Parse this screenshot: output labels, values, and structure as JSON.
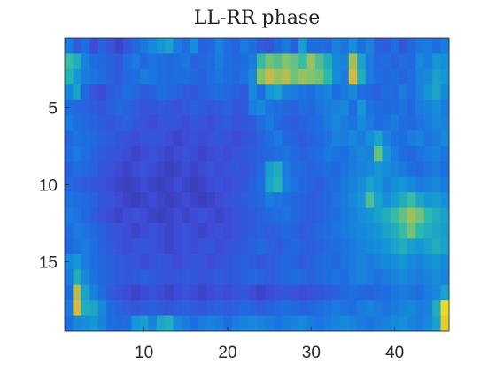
{
  "chart_data": {
    "type": "heatmap",
    "title": "LL-RR phase",
    "xlabel": "",
    "ylabel": "",
    "n_cols": 46,
    "n_rows": 19,
    "x_ticks": [
      10,
      20,
      30,
      40
    ],
    "y_ticks": [
      5,
      10,
      15
    ],
    "colormap": "parula",
    "grid": false,
    "values": [
      [
        0.35,
        0.22,
        0.3,
        0.15,
        0.25,
        0.18,
        0.12,
        0.2,
        0.28,
        0.33,
        0.4,
        0.45,
        0.5,
        0.35,
        0.3,
        0.42,
        0.25,
        0.28,
        0.38,
        0.3,
        0.25,
        0.35,
        0.3,
        0.22,
        0.2,
        0.28,
        0.35,
        0.25,
        0.48,
        0.3,
        0.3,
        0.28,
        0.38,
        0.32,
        0.42,
        0.3,
        0.38,
        0.25,
        0.22,
        0.3,
        0.2,
        0.28,
        0.33,
        0.35,
        0.3,
        0.35
      ],
      [
        0.62,
        0.55,
        0.38,
        0.3,
        0.28,
        0.25,
        0.22,
        0.3,
        0.35,
        0.28,
        0.32,
        0.3,
        0.28,
        0.3,
        0.33,
        0.25,
        0.28,
        0.3,
        0.35,
        0.3,
        0.28,
        0.3,
        0.35,
        0.62,
        0.7,
        0.66,
        0.72,
        0.68,
        0.62,
        0.75,
        0.65,
        0.55,
        0.4,
        0.38,
        0.76,
        0.5,
        0.35,
        0.28,
        0.3,
        0.25,
        0.3,
        0.28,
        0.4,
        0.35,
        0.45,
        0.42
      ],
      [
        0.58,
        0.45,
        0.35,
        0.32,
        0.3,
        0.25,
        0.22,
        0.28,
        0.3,
        0.35,
        0.33,
        0.3,
        0.28,
        0.3,
        0.3,
        0.28,
        0.25,
        0.3,
        0.33,
        0.3,
        0.28,
        0.32,
        0.4,
        0.72,
        0.8,
        0.74,
        0.78,
        0.7,
        0.75,
        0.72,
        0.7,
        0.6,
        0.42,
        0.35,
        0.82,
        0.55,
        0.35,
        0.3,
        0.28,
        0.3,
        0.26,
        0.3,
        0.38,
        0.4,
        0.5,
        0.45
      ],
      [
        0.4,
        0.5,
        0.28,
        0.18,
        0.15,
        0.22,
        0.25,
        0.3,
        0.28,
        0.22,
        0.25,
        0.3,
        0.28,
        0.25,
        0.22,
        0.2,
        0.25,
        0.28,
        0.3,
        0.28,
        0.25,
        0.22,
        0.4,
        0.3,
        0.45,
        0.5,
        0.38,
        0.35,
        0.32,
        0.3,
        0.35,
        0.38,
        0.3,
        0.35,
        0.4,
        0.3,
        0.28,
        0.25,
        0.3,
        0.28,
        0.35,
        0.3,
        0.38,
        0.45,
        0.52,
        0.4
      ],
      [
        0.3,
        0.28,
        0.25,
        0.22,
        0.2,
        0.25,
        0.28,
        0.25,
        0.22,
        0.18,
        0.2,
        0.22,
        0.2,
        0.18,
        0.22,
        0.25,
        0.22,
        0.2,
        0.22,
        0.25,
        0.2,
        0.22,
        0.35,
        0.4,
        0.32,
        0.3,
        0.28,
        0.25,
        0.3,
        0.28,
        0.32,
        0.35,
        0.38,
        0.4,
        0.3,
        0.45,
        0.32,
        0.3,
        0.28,
        0.3,
        0.32,
        0.28,
        0.35,
        0.38,
        0.42,
        0.35
      ],
      [
        0.35,
        0.3,
        0.28,
        0.25,
        0.22,
        0.2,
        0.22,
        0.25,
        0.2,
        0.18,
        0.15,
        0.18,
        0.2,
        0.18,
        0.15,
        0.2,
        0.18,
        0.15,
        0.2,
        0.22,
        0.18,
        0.2,
        0.22,
        0.3,
        0.35,
        0.28,
        0.25,
        0.22,
        0.25,
        0.28,
        0.3,
        0.35,
        0.4,
        0.35,
        0.32,
        0.4,
        0.35,
        0.3,
        0.32,
        0.35,
        0.3,
        0.28,
        0.32,
        0.35,
        0.4,
        0.38
      ],
      [
        0.28,
        0.32,
        0.3,
        0.28,
        0.25,
        0.22,
        0.2,
        0.18,
        0.15,
        0.18,
        0.2,
        0.18,
        0.15,
        0.12,
        0.15,
        0.18,
        0.15,
        0.18,
        0.2,
        0.18,
        0.15,
        0.18,
        0.2,
        0.25,
        0.3,
        0.35,
        0.28,
        0.25,
        0.22,
        0.25,
        0.28,
        0.32,
        0.38,
        0.35,
        0.4,
        0.35,
        0.42,
        0.5,
        0.38,
        0.32,
        0.3,
        0.35,
        0.38,
        0.32,
        0.35,
        0.4
      ],
      [
        0.3,
        0.35,
        0.3,
        0.25,
        0.22,
        0.2,
        0.18,
        0.15,
        0.12,
        0.15,
        0.18,
        0.15,
        0.12,
        0.15,
        0.18,
        0.15,
        0.12,
        0.15,
        0.18,
        0.15,
        0.18,
        0.2,
        0.22,
        0.25,
        0.28,
        0.3,
        0.32,
        0.28,
        0.25,
        0.28,
        0.3,
        0.35,
        0.32,
        0.3,
        0.35,
        0.4,
        0.38,
        0.68,
        0.45,
        0.35,
        0.3,
        0.28,
        0.32,
        0.35,
        0.38,
        0.32
      ],
      [
        0.25,
        0.3,
        0.28,
        0.25,
        0.2,
        0.18,
        0.15,
        0.12,
        0.15,
        0.18,
        0.15,
        0.12,
        0.1,
        0.12,
        0.15,
        0.12,
        0.15,
        0.18,
        0.15,
        0.18,
        0.2,
        0.18,
        0.22,
        0.28,
        0.48,
        0.55,
        0.35,
        0.3,
        0.28,
        0.25,
        0.28,
        0.3,
        0.28,
        0.32,
        0.35,
        0.38,
        0.4,
        0.45,
        0.42,
        0.38,
        0.35,
        0.3,
        0.28,
        0.32,
        0.35,
        0.3
      ],
      [
        0.28,
        0.25,
        0.22,
        0.2,
        0.18,
        0.15,
        0.12,
        0.1,
        0.12,
        0.15,
        0.12,
        0.1,
        0.12,
        0.15,
        0.12,
        0.1,
        0.12,
        0.15,
        0.18,
        0.15,
        0.18,
        0.2,
        0.25,
        0.3,
        0.5,
        0.58,
        0.38,
        0.32,
        0.28,
        0.25,
        0.22,
        0.28,
        0.3,
        0.35,
        0.38,
        0.42,
        0.5,
        0.45,
        0.38,
        0.42,
        0.45,
        0.4,
        0.35,
        0.38,
        0.4,
        0.35
      ],
      [
        0.32,
        0.3,
        0.28,
        0.25,
        0.2,
        0.18,
        0.15,
        0.12,
        0.1,
        0.12,
        0.15,
        0.12,
        0.1,
        0.12,
        0.15,
        0.12,
        0.1,
        0.12,
        0.15,
        0.18,
        0.2,
        0.22,
        0.25,
        0.28,
        0.35,
        0.32,
        0.3,
        0.28,
        0.25,
        0.22,
        0.25,
        0.28,
        0.32,
        0.35,
        0.4,
        0.45,
        0.65,
        0.5,
        0.42,
        0.48,
        0.55,
        0.62,
        0.52,
        0.45,
        0.48,
        0.42
      ],
      [
        0.35,
        0.32,
        0.28,
        0.22,
        0.18,
        0.15,
        0.12,
        0.15,
        0.18,
        0.15,
        0.12,
        0.1,
        0.12,
        0.15,
        0.12,
        0.15,
        0.18,
        0.15,
        0.12,
        0.15,
        0.18,
        0.2,
        0.22,
        0.25,
        0.28,
        0.3,
        0.32,
        0.28,
        0.25,
        0.22,
        0.25,
        0.28,
        0.3,
        0.35,
        0.38,
        0.42,
        0.45,
        0.5,
        0.55,
        0.62,
        0.68,
        0.75,
        0.7,
        0.6,
        0.55,
        0.5
      ],
      [
        0.3,
        0.35,
        0.32,
        0.28,
        0.25,
        0.2,
        0.18,
        0.15,
        0.12,
        0.15,
        0.18,
        0.15,
        0.12,
        0.15,
        0.18,
        0.15,
        0.12,
        0.15,
        0.18,
        0.15,
        0.18,
        0.2,
        0.22,
        0.25,
        0.22,
        0.25,
        0.28,
        0.25,
        0.22,
        0.25,
        0.28,
        0.3,
        0.32,
        0.35,
        0.38,
        0.4,
        0.42,
        0.45,
        0.5,
        0.55,
        0.62,
        0.7,
        0.6,
        0.55,
        0.52,
        0.48
      ],
      [
        0.28,
        0.32,
        0.35,
        0.3,
        0.25,
        0.22,
        0.18,
        0.15,
        0.18,
        0.2,
        0.18,
        0.15,
        0.12,
        0.15,
        0.18,
        0.15,
        0.18,
        0.2,
        0.15,
        0.18,
        0.2,
        0.22,
        0.25,
        0.28,
        0.25,
        0.22,
        0.25,
        0.28,
        0.25,
        0.22,
        0.25,
        0.28,
        0.3,
        0.32,
        0.35,
        0.38,
        0.4,
        0.42,
        0.45,
        0.5,
        0.55,
        0.48,
        0.45,
        0.5,
        0.55,
        0.5
      ],
      [
        0.4,
        0.45,
        0.35,
        0.3,
        0.28,
        0.25,
        0.22,
        0.2,
        0.18,
        0.15,
        0.18,
        0.2,
        0.18,
        0.15,
        0.18,
        0.2,
        0.18,
        0.15,
        0.18,
        0.2,
        0.22,
        0.25,
        0.22,
        0.2,
        0.22,
        0.25,
        0.28,
        0.25,
        0.22,
        0.25,
        0.28,
        0.3,
        0.28,
        0.32,
        0.35,
        0.38,
        0.35,
        0.38,
        0.4,
        0.42,
        0.45,
        0.4,
        0.38,
        0.42,
        0.45,
        0.4
      ],
      [
        0.35,
        0.55,
        0.4,
        0.32,
        0.28,
        0.25,
        0.22,
        0.2,
        0.22,
        0.25,
        0.22,
        0.2,
        0.18,
        0.2,
        0.22,
        0.2,
        0.18,
        0.2,
        0.22,
        0.2,
        0.22,
        0.25,
        0.28,
        0.25,
        0.22,
        0.25,
        0.28,
        0.3,
        0.28,
        0.25,
        0.28,
        0.3,
        0.32,
        0.3,
        0.35,
        0.38,
        0.35,
        0.32,
        0.35,
        0.38,
        0.4,
        0.38,
        0.35,
        0.38,
        0.42,
        0.38
      ],
      [
        0.3,
        0.78,
        0.5,
        0.38,
        0.3,
        0.22,
        0.18,
        0.15,
        0.12,
        0.15,
        0.18,
        0.15,
        0.12,
        0.15,
        0.18,
        0.15,
        0.12,
        0.15,
        0.18,
        0.15,
        0.18,
        0.2,
        0.15,
        0.12,
        0.15,
        0.18,
        0.2,
        0.18,
        0.15,
        0.18,
        0.2,
        0.22,
        0.25,
        0.28,
        0.3,
        0.28,
        0.25,
        0.28,
        0.3,
        0.32,
        0.35,
        0.32,
        0.3,
        0.35,
        0.4,
        0.5
      ],
      [
        0.35,
        0.82,
        0.55,
        0.52,
        0.4,
        0.3,
        0.25,
        0.22,
        0.2,
        0.22,
        0.25,
        0.22,
        0.2,
        0.22,
        0.25,
        0.22,
        0.2,
        0.22,
        0.25,
        0.22,
        0.25,
        0.28,
        0.25,
        0.22,
        0.25,
        0.28,
        0.3,
        0.28,
        0.25,
        0.28,
        0.3,
        0.32,
        0.35,
        0.32,
        0.3,
        0.35,
        0.38,
        0.35,
        0.32,
        0.35,
        0.38,
        0.4,
        0.35,
        0.38,
        0.55,
        0.92
      ],
      [
        0.3,
        0.4,
        0.42,
        0.45,
        0.38,
        0.3,
        0.28,
        0.3,
        0.45,
        0.48,
        0.38,
        0.52,
        0.55,
        0.4,
        0.35,
        0.3,
        0.35,
        0.38,
        0.35,
        0.3,
        0.35,
        0.38,
        0.4,
        0.38,
        0.35,
        0.32,
        0.35,
        0.38,
        0.4,
        0.35,
        0.32,
        0.35,
        0.38,
        0.4,
        0.38,
        0.35,
        0.32,
        0.35,
        0.38,
        0.4,
        0.42,
        0.38,
        0.35,
        0.4,
        0.5,
        0.88
      ]
    ]
  }
}
